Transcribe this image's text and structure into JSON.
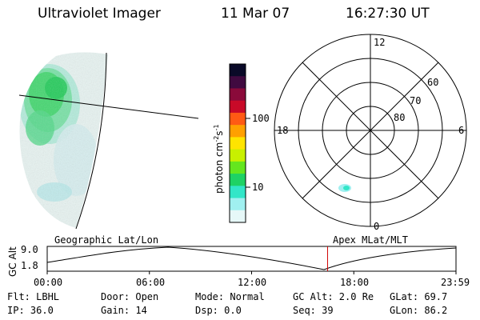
{
  "header": {
    "instrument": "Ultraviolet Imager",
    "date": "11 Mar 07",
    "time": "16:27:30 UT"
  },
  "colorbar": {
    "unit_label": "photon cm",
    "unit_exp1": "-2",
    "unit_s": "s",
    "unit_exp2": "-1",
    "tick_100": "100",
    "tick_10": "10",
    "colors": [
      "#0a0a28",
      "#400a40",
      "#8a0a3a",
      "#c80a28",
      "#ff5a14",
      "#ffa000",
      "#ffe400",
      "#c8f000",
      "#64e61e",
      "#1ed264",
      "#32e6c8",
      "#a0f0f0",
      "#e6f8f8"
    ]
  },
  "polar": {
    "mlt_top": "12",
    "mlt_left": "18",
    "mlt_right": "6",
    "mlt_bottom": "0",
    "lat_60": "60",
    "lat_70": "70",
    "lat_80": "80"
  },
  "timeline": {
    "y_axis_label": "GC Alt",
    "y_top": "9.0",
    "y_bottom": "1.8",
    "left_caption": "Geographic Lat/Lon",
    "right_caption": "Apex MLat/MLT",
    "times": [
      "00:00",
      "06:00",
      "12:00",
      "18:00",
      "23:59"
    ],
    "marker_hour": 16.46
  },
  "footer": {
    "flt": "Flt: LBHL",
    "ip": "IP: 36.0",
    "door": "Door: Open",
    "gain": "Gain: 14",
    "mode": "Mode: Normal",
    "dsp": "Dsp:     0.0",
    "gcalt": "GC Alt: 2.0 Re",
    "seq": "Seq: 39",
    "glat": "GLat:  69.7",
    "glon": "GLon:  86.2"
  }
}
